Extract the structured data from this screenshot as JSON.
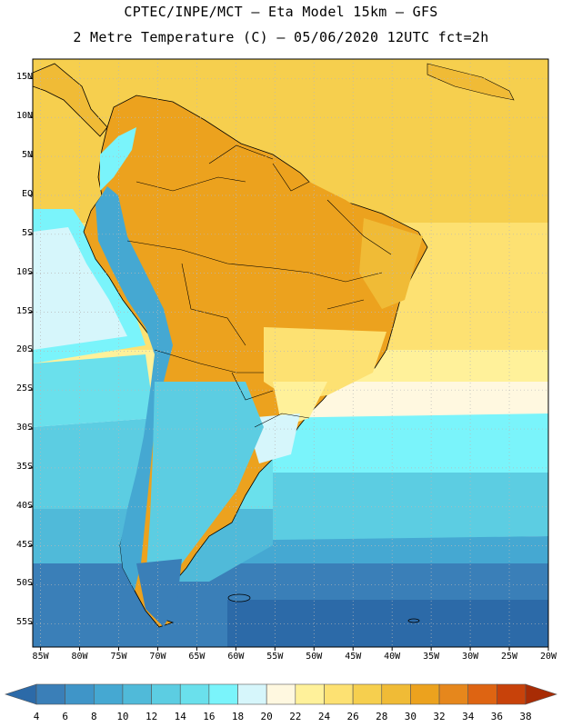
{
  "header": {
    "line1": "CPTEC/INPE/MCT –  Eta Model 15km – GFS",
    "line2": "2 Metre Temperature (C) – 05/06/2020 12UTC fct=2h"
  },
  "axes": {
    "lat_labels": [
      "15N",
      "10N",
      "5N",
      "EQ",
      "5S",
      "10S",
      "15S",
      "20S",
      "25S",
      "30S",
      "35S",
      "40S",
      "45S",
      "50S",
      "55S"
    ],
    "lon_labels": [
      "85W",
      "80W",
      "75W",
      "70W",
      "65W",
      "60W",
      "55W",
      "50W",
      "45W",
      "40W",
      "35W",
      "30W",
      "25W",
      "20W"
    ],
    "lat_range": [
      17.5,
      -58
    ],
    "lon_range": [
      -86,
      -20
    ]
  },
  "colorbar": {
    "labels": [
      "4",
      "6",
      "8",
      "10",
      "12",
      "14",
      "16",
      "18",
      "20",
      "22",
      "24",
      "26",
      "28",
      "30",
      "32",
      "34",
      "36",
      "38"
    ],
    "colors": [
      "#2c6aa8",
      "#3a7fb8",
      "#3f95c8",
      "#45a8d2",
      "#50bad9",
      "#5ccde2",
      "#6ae0ec",
      "#7af4fb",
      "#d6f6fb",
      "#fff8e0",
      "#fff19a",
      "#fde172",
      "#f6cf4e",
      "#f0bb36",
      "#eca21e",
      "#e6871c",
      "#de6412",
      "#c8420a",
      "#a82c05"
    ]
  },
  "map": {
    "variable": "2 Metre Temperature",
    "ocean_colors": [
      "#7af4fb",
      "#5ccde2",
      "#50bad9",
      "#45a8d2",
      "#3a7fb8"
    ],
    "land_colors": [
      "#f6cf4e",
      "#f0bb36",
      "#eca21e",
      "#5ccde2",
      "#3a7fb8"
    ]
  }
}
